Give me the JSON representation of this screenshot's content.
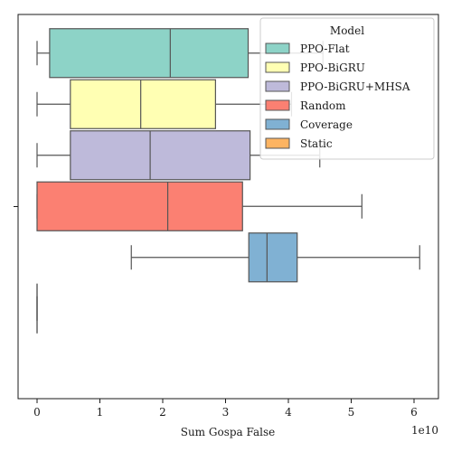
{
  "chart_data": {
    "type": "boxplot",
    "orientation": "horizontal",
    "xlabel": "Sum Gospa False",
    "x_offset_label": "1e10",
    "xlim": [
      -0.3,
      6.4
    ],
    "xticks": [
      0,
      1,
      2,
      3,
      4,
      5,
      6
    ],
    "xtick_labels": [
      "0",
      "1",
      "2",
      "3",
      "4",
      "5",
      "6"
    ],
    "grid": false,
    "legend": {
      "title": "Model",
      "placement": "upper right"
    },
    "series": [
      {
        "name": "PPO-Flat",
        "color": "#8dd3c7",
        "whisker_low": 0.0,
        "q1": 0.2,
        "median": 2.12,
        "q3": 3.36,
        "whisker_high": 4.55
      },
      {
        "name": "PPO-BiGRU",
        "color": "#ffffb3",
        "whisker_low": 0.0,
        "q1": 0.53,
        "median": 1.65,
        "q3": 2.84,
        "whisker_high": 4.05
      },
      {
        "name": "PPO-BiGRU+MHSA",
        "color": "#bebada",
        "whisker_low": 0.0,
        "q1": 0.53,
        "median": 1.8,
        "q3": 3.39,
        "whisker_high": 4.5
      },
      {
        "name": "Random",
        "color": "#fb8072",
        "whisker_low": 0.0,
        "q1": 0.0,
        "median": 2.08,
        "q3": 3.27,
        "whisker_high": 5.17
      },
      {
        "name": "Coverage",
        "color": "#80b1d3",
        "whisker_low": 1.5,
        "q1": 3.37,
        "median": 3.66,
        "q3": 4.14,
        "whisker_high": 6.09
      },
      {
        "name": "Static",
        "color": "#fdb462",
        "whisker_low": 0.0,
        "q1": 0.0,
        "median": 0.0,
        "q3": 0.0,
        "whisker_high": 0.0
      }
    ]
  }
}
